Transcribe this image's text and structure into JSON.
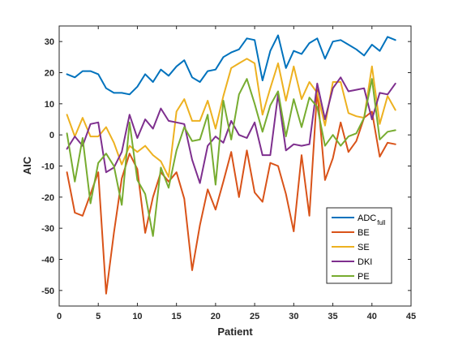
{
  "chart_data": {
    "type": "line",
    "xlabel": "Patient",
    "ylabel": "AIC",
    "xlim": [
      0,
      45
    ],
    "ylim": [
      -55,
      35
    ],
    "x_ticks": [
      0,
      5,
      10,
      15,
      20,
      25,
      30,
      35,
      40,
      45
    ],
    "y_ticks": [
      -50,
      -40,
      -30,
      -20,
      -10,
      0,
      10,
      20,
      30
    ],
    "grid": false,
    "legend_position": "bottom-right",
    "x": [
      1,
      2,
      3,
      4,
      5,
      6,
      7,
      8,
      9,
      10,
      11,
      12,
      13,
      14,
      15,
      16,
      17,
      18,
      19,
      20,
      21,
      22,
      23,
      24,
      25,
      26,
      27,
      28,
      29,
      30,
      31,
      32,
      33,
      34,
      35,
      36,
      37,
      38,
      39,
      40,
      41,
      42,
      43
    ],
    "series": [
      {
        "name": "ADC",
        "name_sub": "full",
        "color": "#0072BD",
        "values": [
          19.5,
          18.5,
          20.5,
          20.5,
          19.5,
          15.0,
          13.5,
          13.5,
          13.0,
          15.5,
          19.5,
          17.0,
          21.0,
          19.0,
          22.0,
          24.0,
          18.5,
          17.0,
          20.5,
          21.0,
          25.0,
          26.5,
          27.5,
          31.0,
          30.5,
          17.5,
          27.0,
          32.0,
          21.5,
          27.0,
          26.0,
          29.5,
          31.0,
          24.5,
          30.0,
          30.5,
          29.0,
          27.5,
          25.5,
          29.0,
          27.0,
          31.5,
          30.5
        ]
      },
      {
        "name": "BE",
        "color": "#D95319",
        "values": [
          -12.0,
          -25.0,
          -26.0,
          -19.0,
          -12.0,
          -51.0,
          -31.5,
          -14.0,
          -6.0,
          -11.0,
          -31.5,
          -20.0,
          -12.0,
          -15.0,
          -12.0,
          -20.5,
          -43.5,
          -29.0,
          -17.5,
          -24.0,
          -15.0,
          -5.5,
          -20.0,
          -5.0,
          -18.5,
          -21.5,
          -9.0,
          -10.0,
          -19.0,
          -31.0,
          -6.5,
          -26.0,
          14.5,
          -14.5,
          -7.5,
          4.0,
          -5.5,
          -2.0,
          5.5,
          7.5,
          -7.0,
          -2.5,
          -3.0
        ]
      },
      {
        "name": "SE",
        "color": "#EDB120",
        "values": [
          6.5,
          -0.5,
          5.5,
          -0.5,
          -0.5,
          2.5,
          -2.5,
          -9.5,
          -3.5,
          -5.5,
          -3.5,
          -6.5,
          -8.5,
          -13.5,
          7.5,
          11.5,
          4.5,
          4.5,
          11.0,
          2.0,
          12.5,
          21.5,
          23.0,
          24.5,
          23.0,
          6.5,
          15.0,
          23.0,
          11.0,
          22.0,
          11.5,
          17.0,
          13.5,
          3.0,
          17.0,
          17.0,
          7.0,
          6.0,
          5.5,
          22.0,
          3.5,
          12.5,
          8.0
        ]
      },
      {
        "name": "DKI",
        "color": "#7E2F8E",
        "values": [
          -4.5,
          -0.5,
          -3.5,
          3.5,
          4.0,
          -12.0,
          -10.5,
          -5.5,
          6.5,
          -1.0,
          5.0,
          2.0,
          8.5,
          4.5,
          4.0,
          3.5,
          -8.0,
          -15.5,
          -3.5,
          -0.5,
          -2.5,
          4.5,
          0.0,
          -1.0,
          4.0,
          -6.5,
          -6.5,
          13.0,
          -5.0,
          -3.0,
          -3.5,
          -3.0,
          16.5,
          5.0,
          15.0,
          18.5,
          14.0,
          14.5,
          15.0,
          5.0,
          13.5,
          13.0,
          16.5
        ]
      },
      {
        "name": "PE",
        "color": "#77AC30",
        "values": [
          0.5,
          -15.0,
          -1.0,
          -22.0,
          -9.0,
          -6.0,
          -10.0,
          -22.5,
          4.0,
          -14.5,
          -19.0,
          -32.5,
          -10.5,
          -17.0,
          -5.0,
          2.5,
          -2.0,
          -1.5,
          6.5,
          -16.0,
          11.0,
          -1.5,
          13.0,
          18.0,
          10.0,
          1.0,
          9.5,
          14.0,
          -0.5,
          11.5,
          2.5,
          12.0,
          9.0,
          -3.5,
          0.0,
          -3.5,
          -0.5,
          0.5,
          5.5,
          18.0,
          -1.5,
          1.0,
          1.5
        ]
      }
    ]
  }
}
